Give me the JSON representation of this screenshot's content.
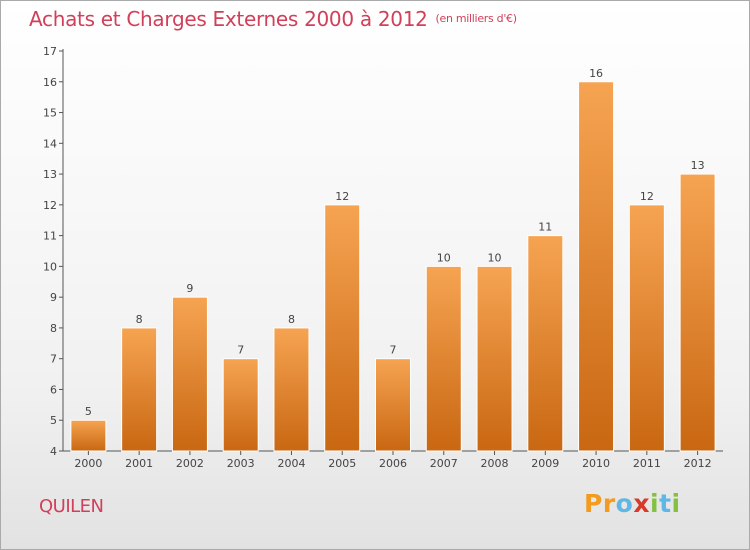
{
  "header": {
    "title": "Achats et Charges Externes 2000 à 2012",
    "unit": "(en milliers d'€)"
  },
  "footer": {
    "commune": "QUILEN",
    "brand": [
      "P",
      "r",
      "o",
      "x",
      "i",
      "t",
      "i"
    ]
  },
  "colors": {
    "title": "#d0405a",
    "bar_top": "#f6a452",
    "bar_bottom": "#c96712",
    "axis": "#555555",
    "grid": "#dddddd"
  },
  "chart_data": {
    "type": "bar",
    "categories": [
      "2000",
      "2001",
      "2002",
      "2003",
      "2004",
      "2005",
      "2006",
      "2007",
      "2008",
      "2009",
      "2010",
      "2011",
      "2012"
    ],
    "values": [
      5,
      8,
      9,
      7,
      8,
      12,
      7,
      10,
      10,
      11,
      16,
      12,
      13
    ],
    "title": "Achats et Charges Externes 2000 à 2012",
    "ylim": [
      4,
      17
    ],
    "yticks": [
      4,
      5,
      6,
      7,
      8,
      9,
      10,
      11,
      12,
      13,
      14,
      15,
      16,
      17
    ],
    "grid": false,
    "data_labels": true
  }
}
